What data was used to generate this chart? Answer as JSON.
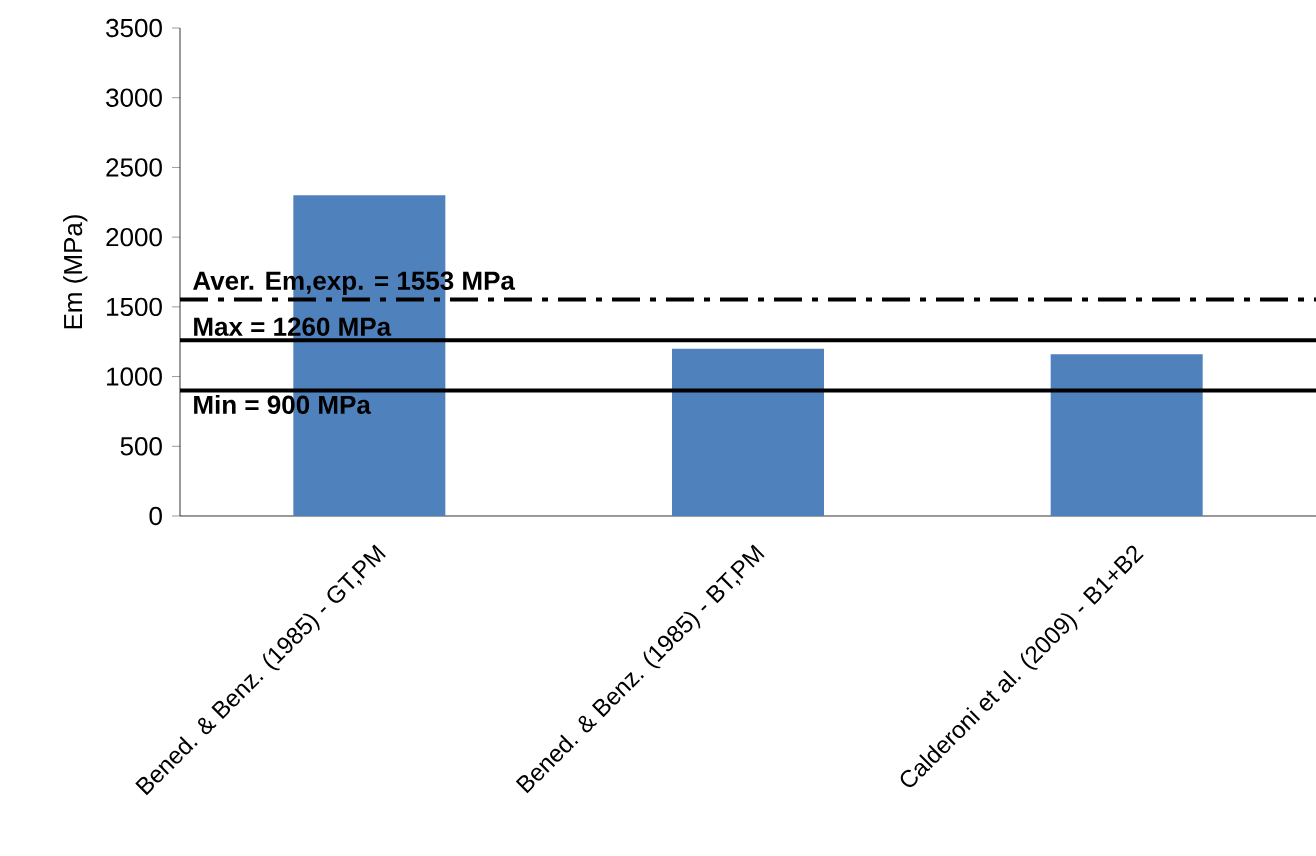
{
  "chart_data": {
    "type": "bar",
    "ylabel": "Em (MPa)",
    "categories": [
      "Bened. & Benz. (1985) - GT,PM",
      "Bened. & Benz. (1985) - BT,PM",
      "Calderoni et al. (2009) - B1+B2"
    ],
    "values": [
      2300,
      1200,
      1160
    ],
    "color": "#4f81bd",
    "ylim": [
      0,
      3500
    ],
    "yticks": [
      0,
      500,
      1000,
      1500,
      2000,
      2500,
      3000,
      3500
    ],
    "ref_lines": [
      {
        "axis": "y",
        "value": 1553,
        "label": "Aver. Em,exp. = 1553 MPa",
        "color": "#000000",
        "line_style": "dashdot"
      },
      {
        "axis": "y",
        "value": 1260,
        "label": "Max = 1260 MPa",
        "color": "#000000",
        "line_style": "solid"
      },
      {
        "axis": "y",
        "value": 900,
        "label": "Min = 900 MPa",
        "color": "#000000",
        "line_style": "solid"
      }
    ]
  }
}
